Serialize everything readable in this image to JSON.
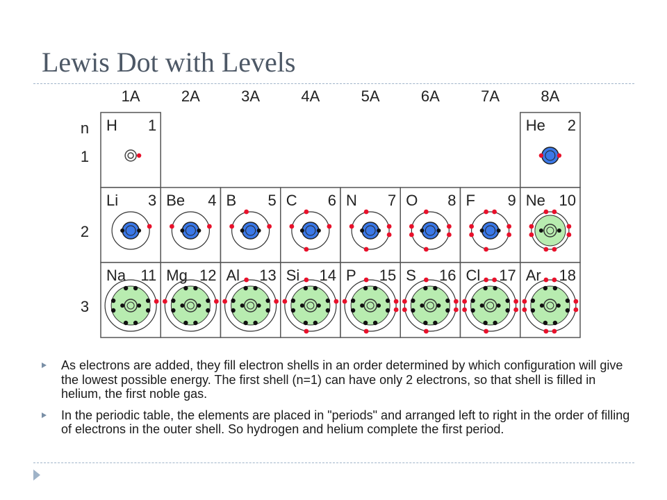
{
  "slide": {
    "title": "Lewis Dot with Levels",
    "bullets": [
      "As electrons are added, they fill electron shells in an order determined by which configuration will give the lowest possible energy. The first shell (n=1) can have only 2 electrons, so that shell is filled in helium, the first noble gas.",
      "In the periodic table, the elements are placed in \"periods\" and arranged left to right in the order of filling of electrons in the outer shell. So hydrogen and helium complete the first period."
    ]
  },
  "table": {
    "groups": [
      "1A",
      "2A",
      "3A",
      "4A",
      "5A",
      "6A",
      "7A",
      "8A"
    ],
    "n_label": "n",
    "periods": [
      "1",
      "2",
      "3"
    ],
    "colors": {
      "electron": "#e8112b",
      "inner_electron": "#111111",
      "nucleus_period2": "#3b78e7",
      "core_green": "#b8ecb0",
      "border": "#555555",
      "text": "#222222"
    },
    "elements": [
      {
        "symbol": "H",
        "number": "1",
        "period": 1,
        "group": 1,
        "valence": 1,
        "core": "none"
      },
      {
        "symbol": "He",
        "number": "2",
        "period": 1,
        "group": 8,
        "valence": 2,
        "core": "blue"
      },
      {
        "symbol": "Li",
        "number": "3",
        "period": 2,
        "group": 1,
        "valence": 1,
        "core": "blue"
      },
      {
        "symbol": "Be",
        "number": "4",
        "period": 2,
        "group": 2,
        "valence": 2,
        "core": "blue"
      },
      {
        "symbol": "B",
        "number": "5",
        "period": 2,
        "group": 3,
        "valence": 3,
        "core": "blue"
      },
      {
        "symbol": "C",
        "number": "6",
        "period": 2,
        "group": 4,
        "valence": 4,
        "core": "blue"
      },
      {
        "symbol": "N",
        "number": "7",
        "period": 2,
        "group": 5,
        "valence": 5,
        "core": "blue"
      },
      {
        "symbol": "O",
        "number": "8",
        "period": 2,
        "group": 6,
        "valence": 6,
        "core": "blue"
      },
      {
        "symbol": "F",
        "number": "9",
        "period": 2,
        "group": 7,
        "valence": 7,
        "core": "blue"
      },
      {
        "symbol": "Ne",
        "number": "10",
        "period": 2,
        "group": 8,
        "valence": 8,
        "core": "green"
      },
      {
        "symbol": "Na",
        "number": "11",
        "period": 3,
        "group": 1,
        "valence": 1,
        "core": "green"
      },
      {
        "symbol": "Mg",
        "number": "12",
        "period": 3,
        "group": 2,
        "valence": 2,
        "core": "green"
      },
      {
        "symbol": "Al",
        "number": "13",
        "period": 3,
        "group": 3,
        "valence": 3,
        "core": "green"
      },
      {
        "symbol": "Si",
        "number": "14",
        "period": 3,
        "group": 4,
        "valence": 4,
        "core": "green"
      },
      {
        "symbol": "P",
        "number": "15",
        "period": 3,
        "group": 5,
        "valence": 5,
        "core": "green"
      },
      {
        "symbol": "S",
        "number": "16",
        "period": 3,
        "group": 6,
        "valence": 6,
        "core": "green"
      },
      {
        "symbol": "Cl",
        "number": "17",
        "period": 3,
        "group": 7,
        "valence": 7,
        "core": "green"
      },
      {
        "symbol": "Ar",
        "number": "18",
        "period": 3,
        "group": 8,
        "valence": 8,
        "core": "green"
      }
    ]
  }
}
